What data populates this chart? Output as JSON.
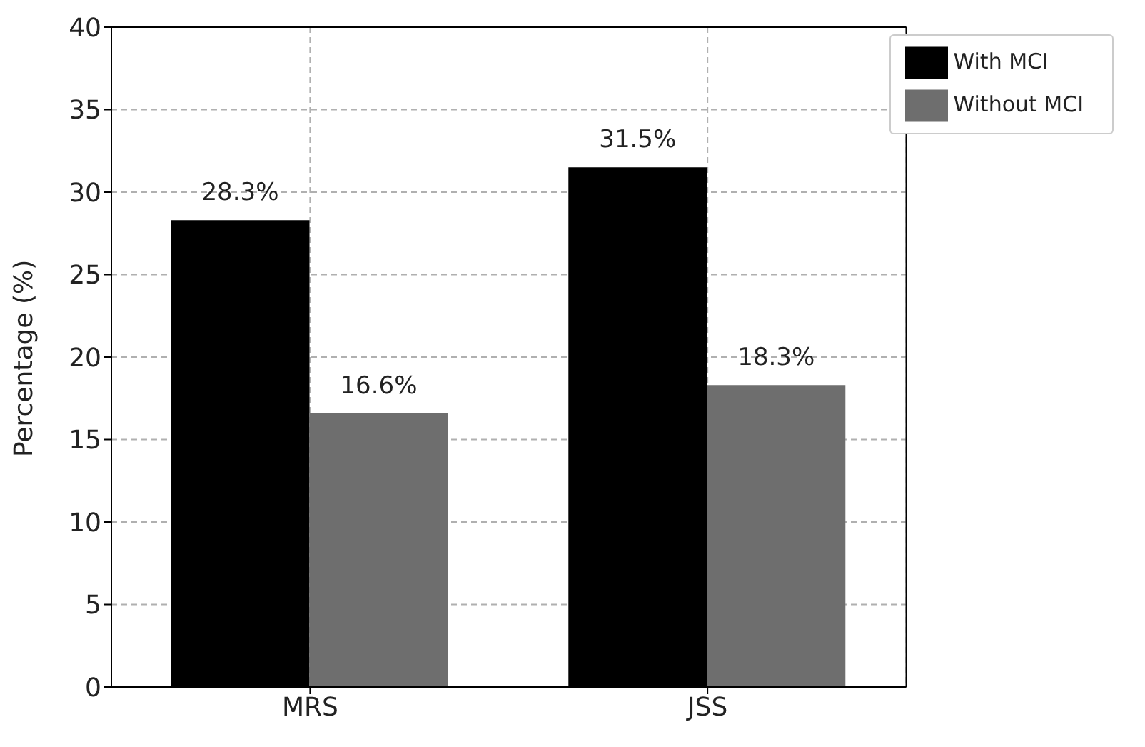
{
  "chart_data": {
    "type": "bar",
    "ylabel": "Percentage (%)",
    "categories": [
      "MRS",
      "JSS"
    ],
    "series": [
      {
        "name": "With MCI",
        "color": "#000000",
        "values": [
          28.3,
          31.5
        ],
        "value_labels": [
          "28.3%",
          "31.5%"
        ]
      },
      {
        "name": "Without MCI",
        "color": "#6e6e6e",
        "values": [
          16.6,
          18.3
        ],
        "value_labels": [
          "16.6%",
          "18.3%"
        ]
      }
    ],
    "ylim": [
      0,
      40
    ],
    "yticks": [
      0,
      5,
      10,
      15,
      20,
      25,
      30,
      35,
      40
    ],
    "grid": true,
    "legend": "top right"
  }
}
